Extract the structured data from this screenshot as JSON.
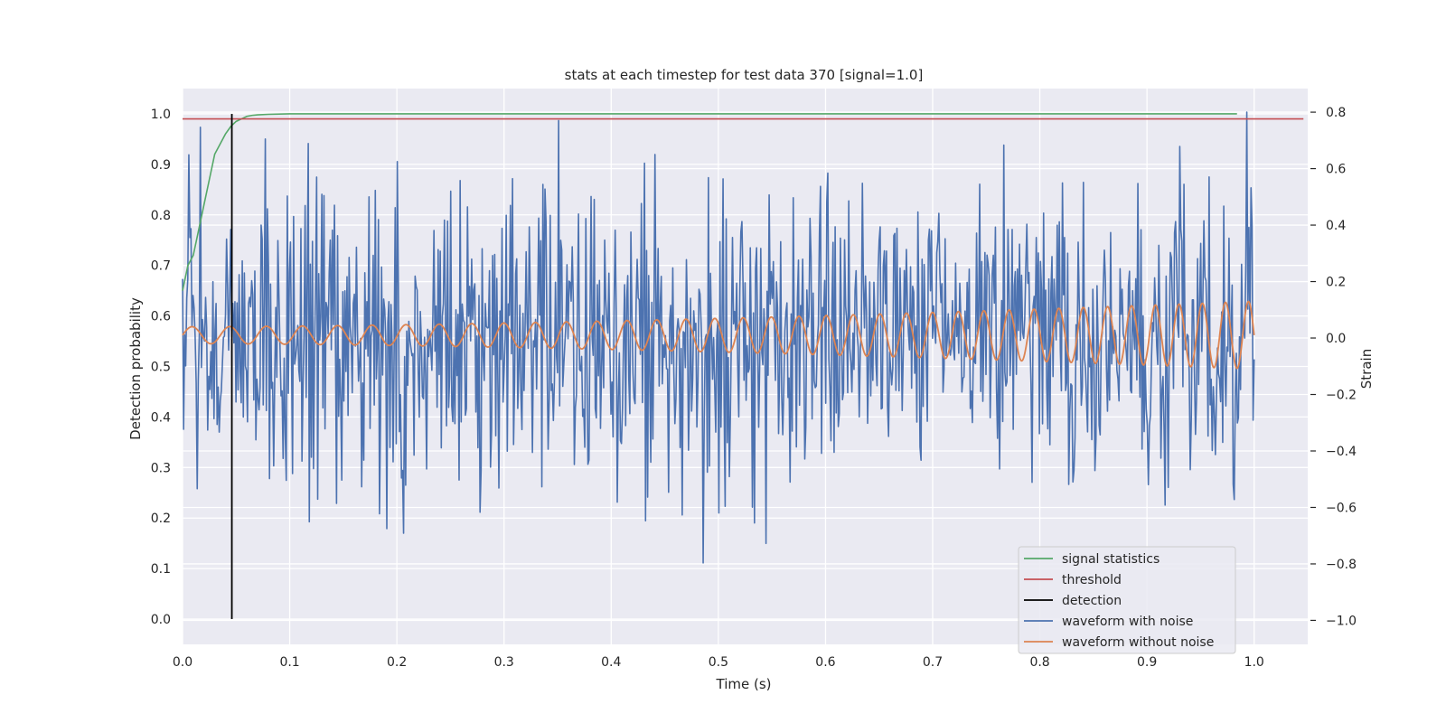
{
  "chart_data": {
    "type": "line",
    "title": "stats at each timestep for test data 370 [signal=1.0]",
    "xlabel": "Time (s)",
    "ylabel_left": "Detection probability",
    "ylabel_right": "Strain",
    "xlim": [
      0.0,
      1.05
    ],
    "ylim_left": [
      -0.05,
      1.05
    ],
    "ylim_right": [
      -1.085,
      0.8835
    ],
    "x_ticks": [
      "0.0",
      "0.1",
      "0.2",
      "0.3",
      "0.4",
      "0.5",
      "0.6",
      "0.7",
      "0.8",
      "0.9",
      "1.0"
    ],
    "y_left_ticks": [
      "0.0",
      "0.1",
      "0.2",
      "0.3",
      "0.4",
      "0.5",
      "0.6",
      "0.7",
      "0.8",
      "0.9",
      "1.0"
    ],
    "y_right_ticks": [
      "−1.0",
      "−0.8",
      "−0.6",
      "−0.4",
      "−0.2",
      "0.0",
      "0.2",
      "0.4",
      "0.6",
      "0.8"
    ],
    "grid": true,
    "legend_position": "lower-right",
    "colors": {
      "background": "#eaeaf2",
      "grid": "#ffffff",
      "signal_statistics": "#55a868",
      "threshold": "#c44e52",
      "detection": "#000000",
      "noisy": "#4c72b0",
      "clean": "#dd8452"
    },
    "legend": [
      "signal statistics",
      "threshold",
      "detection",
      "waveform with noise",
      "waveform without noise"
    ],
    "series": {
      "signal_statistics": {
        "axis": "left",
        "x": [
          0.0,
          0.005,
          0.01,
          0.015,
          0.02,
          0.025,
          0.03,
          0.035,
          0.04,
          0.045,
          0.05,
          0.055,
          0.06,
          0.065,
          0.07,
          0.08,
          0.1,
          0.2,
          0.4,
          0.6,
          0.8,
          0.984
        ],
        "y": [
          0.65,
          0.7,
          0.72,
          0.77,
          0.82,
          0.87,
          0.92,
          0.94,
          0.96,
          0.975,
          0.985,
          0.99,
          0.995,
          0.997,
          0.998,
          0.999,
          1.0,
          1.0,
          1.0,
          1.0,
          1.0,
          1.0
        ]
      },
      "threshold": {
        "axis": "left",
        "x": [
          0.0,
          1.046
        ],
        "y": [
          0.99,
          0.99
        ]
      },
      "detection": {
        "axis": "left",
        "x": [
          0.046,
          0.046
        ],
        "y": [
          0.0,
          1.0
        ]
      },
      "waveform_without_noise": {
        "axis": "right",
        "t_start": 0.0,
        "t_end": 1.0,
        "amplitude_start": 0.03,
        "amplitude_end": 0.12,
        "freq_start_hz": 28,
        "freq_end_hz": 47,
        "offset": 0.01
      },
      "waveform_with_noise": {
        "axis": "right",
        "t_start": 0.0,
        "t_end": 1.0,
        "samples": 1024,
        "noise_std": 0.27,
        "range_shown": [
          -0.85,
          0.8
        ]
      }
    }
  }
}
